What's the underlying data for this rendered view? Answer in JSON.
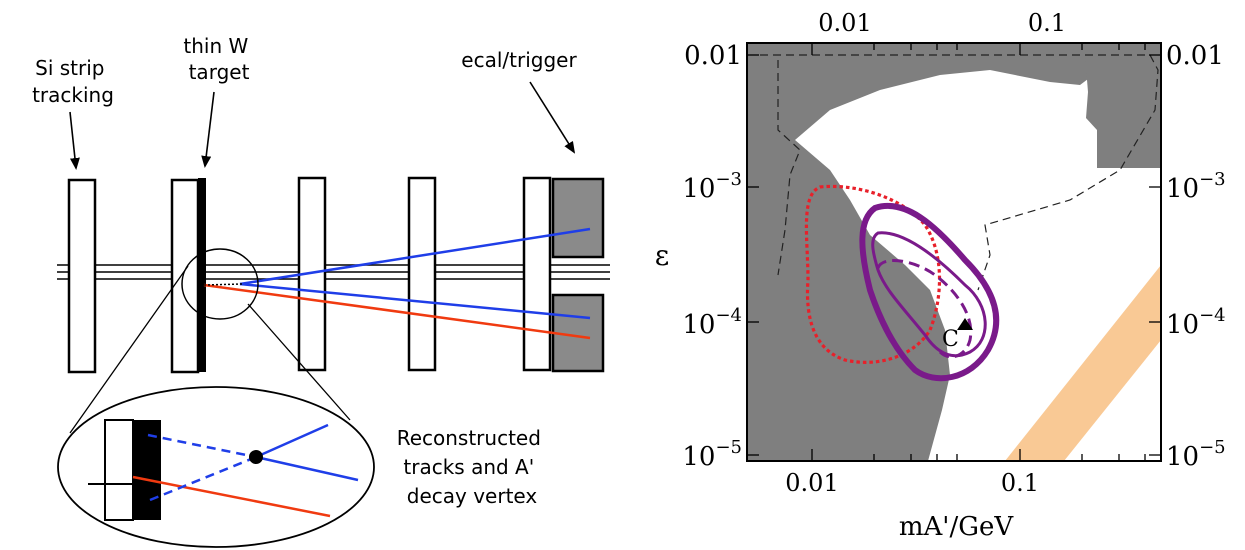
{
  "detector": {
    "labels": {
      "tracking": [
        "Si strip",
        "tracking"
      ],
      "target": [
        "thin W",
        "target"
      ],
      "ecal": "ecal/trigger",
      "reconstructed": [
        "Reconstructed",
        "tracks and A'",
        "decay vertex"
      ]
    },
    "colors": {
      "track_blue": "#1f3ee8",
      "track_red": "#f03a10",
      "ecal_fill": "#8a8a8a"
    }
  },
  "plot": {
    "x_label": "mA'/GeV",
    "y_label": "ε",
    "bottom_ticks": [
      "0.01",
      "0.1"
    ],
    "top_ticks": [
      "0.01",
      "0.1"
    ],
    "left_ticks": [
      {
        "base": "0.01",
        "exp": ""
      },
      {
        "base": "10",
        "exp": "−3"
      },
      {
        "base": "10",
        "exp": "−4"
      },
      {
        "base": "10",
        "exp": "−5"
      }
    ],
    "right_ticks": [
      {
        "base": "0.01",
        "exp": ""
      },
      {
        "base": "10",
        "exp": "−3"
      },
      {
        "base": "10",
        "exp": "−4"
      },
      {
        "base": "10",
        "exp": "−5"
      }
    ],
    "point_label": "C",
    "x_range": [
      0.0045,
      0.45
    ],
    "y_range": [
      9e-06,
      0.011
    ],
    "scale": "log-log",
    "colors": {
      "excluded": "#7f7f7f",
      "band": "#f9c995",
      "red_dotted": "#e8202a",
      "purple": "#7a1a8a"
    }
  }
}
